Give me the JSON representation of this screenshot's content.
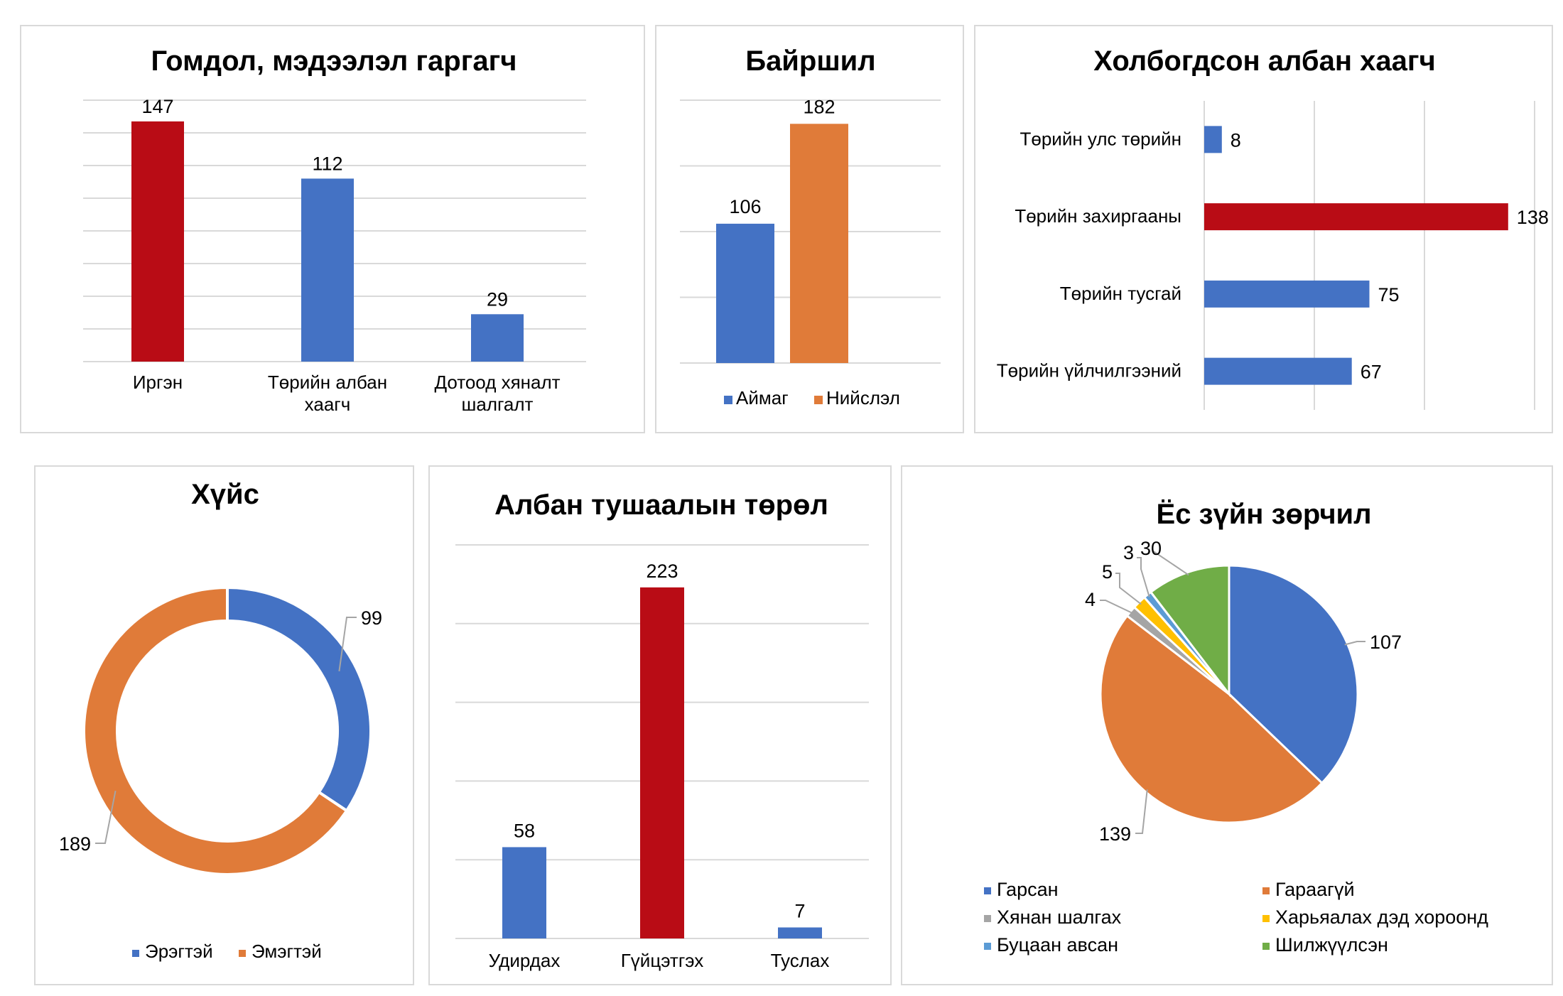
{
  "colors": {
    "blue": "#4472C4",
    "orange": "#E07B39",
    "red": "#B90C15",
    "gray": "#A5A5A5",
    "yellow": "#FFC000",
    "lightblue": "#5B9BD5",
    "green": "#70AD47",
    "grid": "#D9D9D9"
  },
  "chart_data": [
    {
      "type": "bar",
      "title": "Гомдол, мэдээлэл гаргагч",
      "categories": [
        "Иргэн",
        "Төрийн албан хаагч",
        "Дотоод хяналт шалгалт"
      ],
      "category_lines": [
        [
          "Иргэн"
        ],
        [
          "Төрийн албан",
          "хаагч"
        ],
        [
          "Дотоод хяналт",
          "шалгалт"
        ]
      ],
      "values": [
        147,
        112,
        29
      ],
      "colors": [
        "red",
        "blue",
        "blue"
      ],
      "ylim": [
        0,
        160
      ]
    },
    {
      "type": "bar",
      "title": "Байршил",
      "categories": [
        ""
      ],
      "series": [
        {
          "name": "Аймаг",
          "values": [
            106
          ],
          "color": "blue"
        },
        {
          "name": "Нийслэл",
          "values": [
            182
          ],
          "color": "orange"
        }
      ],
      "ylim": [
        0,
        200
      ],
      "legend": "bottom"
    },
    {
      "type": "bar",
      "orientation": "horizontal",
      "title": "Холбогдсон албан хаагч",
      "categories": [
        "Төрийн улс төрийн",
        "Төрийн захиргааны",
        "Төрийн тусгай",
        "Төрийн үйлчилгээний"
      ],
      "values": [
        8,
        138,
        75,
        67
      ],
      "colors": [
        "blue",
        "red",
        "blue",
        "blue"
      ],
      "xlim": [
        0,
        150
      ]
    },
    {
      "type": "pie",
      "subtype": "donut",
      "title": "Хүйс",
      "labels": [
        "Эрэгтэй",
        "Эмэгтэй"
      ],
      "values": [
        99,
        189
      ],
      "colors": [
        "blue",
        "orange"
      ],
      "legend": "bottom"
    },
    {
      "type": "bar",
      "title": "Албан тушаалын төрөл",
      "categories": [
        "Удирдах",
        "Гүйцэтгэх",
        "Туслах"
      ],
      "values": [
        58,
        223,
        7
      ],
      "colors": [
        "blue",
        "red",
        "blue"
      ],
      "ylim": [
        0,
        250
      ]
    },
    {
      "type": "pie",
      "title": "Ёс зүйн зөрчил",
      "labels": [
        "Гарсан",
        "Гараагүй",
        "Хянан шалгах",
        "Харьяалах дэд хороонд",
        "Буцаан авсан",
        "Шилжүүлсэн"
      ],
      "values": [
        107,
        139,
        4,
        5,
        3,
        30
      ],
      "colors": [
        "blue",
        "orange",
        "gray",
        "yellow",
        "lightblue",
        "green"
      ],
      "legend": "bottom"
    }
  ]
}
